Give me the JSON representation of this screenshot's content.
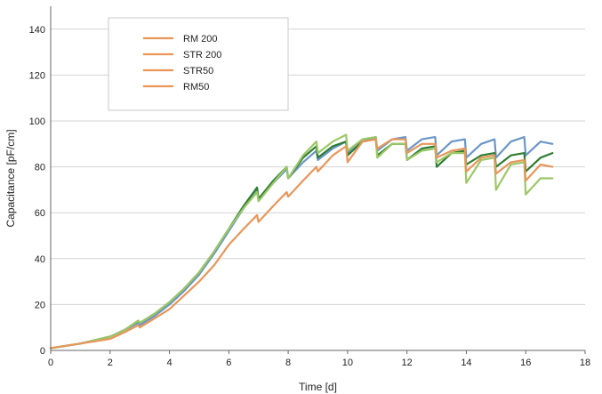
{
  "chart_data": {
    "type": "line",
    "title": "",
    "xlabel": "Time [d]",
    "ylabel": "Capacitance [pF/cm]",
    "xlim": [
      0,
      18
    ],
    "ylim": [
      0,
      150
    ],
    "xticks": [
      0,
      2,
      4,
      6,
      8,
      10,
      12,
      14,
      16,
      18
    ],
    "yticks": [
      0,
      20,
      40,
      60,
      80,
      100,
      120,
      140
    ],
    "grid": "horizontal",
    "legend_position": "top-left",
    "legend": [
      {
        "label": "RM 200",
        "color": "#E8965A"
      },
      {
        "label": "STR 200",
        "color": "#E8965A"
      },
      {
        "label": "STR50",
        "color": "#E8965A"
      },
      {
        "label": "RM50",
        "color": "#E8965A"
      }
    ],
    "series": [
      {
        "color": "#6B96C8",
        "x": [
          0,
          1,
          2,
          2.5,
          2.95,
          3.0,
          3.5,
          4,
          4.5,
          5,
          5.5,
          6,
          6.5,
          6.95,
          7.0,
          7.5,
          7.95,
          8.0,
          8.5,
          8.95,
          9.0,
          9.5,
          9.95,
          10.0,
          10.5,
          10.95,
          11.0,
          11.5,
          11.95,
          12.0,
          12.5,
          12.95,
          13.0,
          13.5,
          13.95,
          14.0,
          14.5,
          14.95,
          15.0,
          15.5,
          15.95,
          16.0,
          16.5,
          16.9
        ],
        "y": [
          1,
          3,
          6,
          9,
          12,
          11,
          15,
          20,
          26,
          33,
          42,
          52,
          62,
          70,
          66,
          73,
          79,
          75,
          82,
          87,
          83,
          88,
          91,
          86,
          91,
          93,
          87,
          92,
          93,
          87,
          92,
          93,
          85,
          91,
          92,
          84,
          90,
          92,
          84,
          91,
          93,
          85,
          91,
          90
        ]
      },
      {
        "color": "#2E7D32",
        "x": [
          0,
          1,
          2,
          2.5,
          2.95,
          3.0,
          3.5,
          4,
          4.5,
          5,
          5.5,
          6,
          6.5,
          6.95,
          7.0,
          7.5,
          7.95,
          8.0,
          8.5,
          8.95,
          9.0,
          9.5,
          9.95,
          10.0,
          10.5,
          10.95,
          11.0,
          11.5,
          11.95,
          12.0,
          12.5,
          12.95,
          13.0,
          13.5,
          13.95,
          14.0,
          14.5,
          14.95,
          15.0,
          15.5,
          15.95,
          16.0,
          16.5,
          16.9
        ],
        "y": [
          1,
          3,
          6,
          9,
          13,
          12,
          16,
          21,
          27,
          34,
          43,
          53,
          63,
          71,
          66,
          74,
          80,
          75,
          84,
          89,
          84,
          89,
          91,
          85,
          91,
          92,
          85,
          90,
          90,
          83,
          88,
          89,
          80,
          86,
          87,
          81,
          85,
          86,
          80,
          85,
          86,
          78,
          84,
          86
        ]
      },
      {
        "color": "#9CC766",
        "x": [
          0,
          1,
          2,
          2.5,
          2.95,
          3.0,
          3.5,
          4,
          4.5,
          5,
          5.5,
          6,
          6.5,
          6.95,
          7.0,
          7.5,
          7.95,
          8.0,
          8.5,
          8.95,
          9.0,
          9.5,
          9.95,
          10.0,
          10.5,
          10.95,
          11.0,
          11.5,
          11.95,
          12.0,
          12.5,
          12.95,
          13.0,
          13.5,
          13.95,
          14.0,
          14.5,
          14.95,
          15.0,
          15.5,
          15.95,
          16.0,
          16.5,
          16.9
        ],
        "y": [
          1,
          3,
          6,
          9,
          13,
          12,
          16,
          21,
          27,
          34,
          43,
          53,
          62,
          69,
          65,
          73,
          80,
          75,
          85,
          91,
          86,
          91,
          94,
          87,
          92,
          93,
          84,
          90,
          90,
          83,
          87,
          88,
          82,
          86,
          86,
          73,
          83,
          84,
          70,
          81,
          82,
          68,
          75,
          75
        ]
      },
      {
        "color": "#E8965A",
        "x": [
          0,
          1,
          2,
          2.5,
          2.95,
          3.0,
          3.5,
          4,
          4.5,
          5,
          5.5,
          6,
          6.5,
          6.95,
          7.0,
          7.5,
          7.95,
          8.0,
          8.5,
          8.95,
          9.0,
          9.5,
          9.95,
          10.0,
          10.5,
          10.95,
          11.0,
          11.5,
          11.95,
          12.0,
          12.5,
          12.95,
          13.0,
          13.5,
          13.95,
          14.0,
          14.5,
          14.95,
          15.0,
          15.5,
          15.95,
          16.0,
          16.5,
          16.9
        ],
        "y": [
          1,
          3,
          5,
          8,
          11,
          10,
          14,
          18,
          24,
          30,
          37,
          46,
          53,
          59,
          56,
          63,
          69,
          67,
          74,
          80,
          78,
          85,
          89,
          82,
          91,
          92,
          88,
          92,
          92,
          86,
          90,
          90,
          84,
          87,
          88,
          78,
          84,
          85,
          77,
          82,
          83,
          74,
          81,
          80
        ]
      }
    ]
  }
}
